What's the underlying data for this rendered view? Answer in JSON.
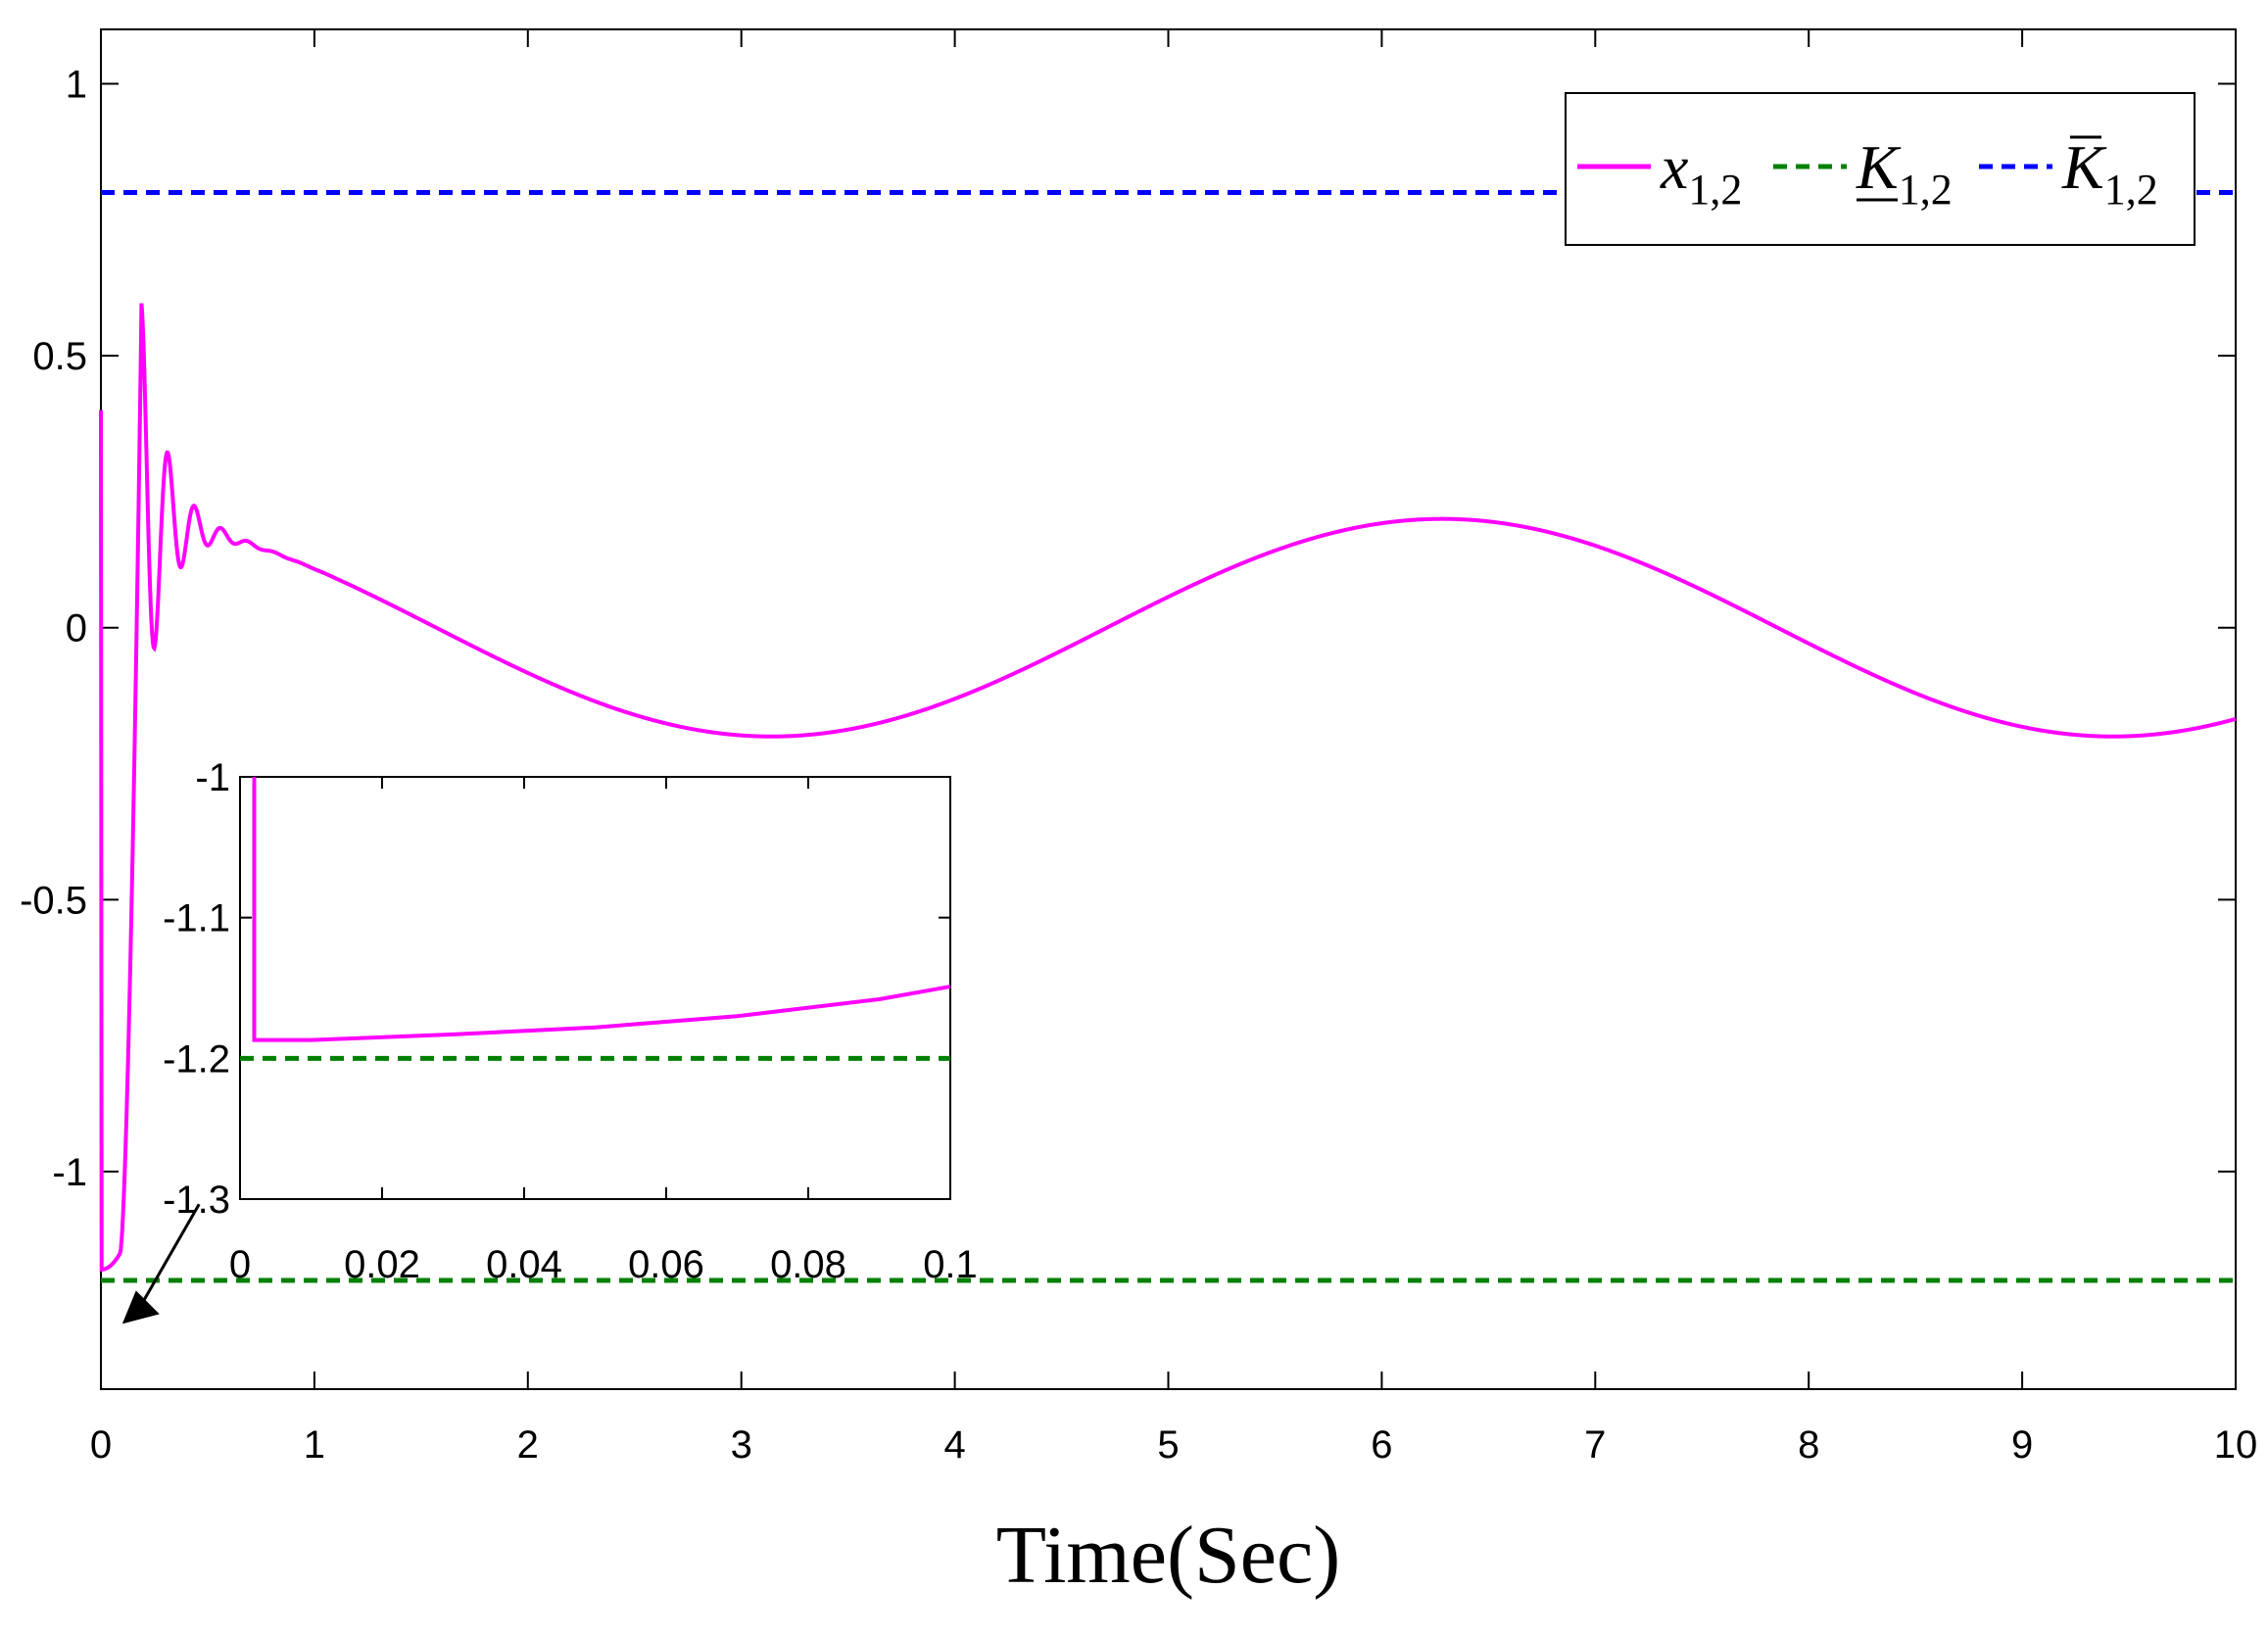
{
  "chart_data": {
    "type": "line",
    "xlabel": "Time(Sec)",
    "ylabel": "",
    "xlim": [
      0,
      10
    ],
    "ylim": [
      -1.4,
      1.1
    ],
    "xticks": [
      0,
      1,
      2,
      3,
      4,
      5,
      6,
      7,
      8,
      9,
      10
    ],
    "xtick_labels": [
      "0",
      "1",
      "2",
      "3",
      "4",
      "5",
      "6",
      "7",
      "8",
      "9",
      "10"
    ],
    "yticks": [
      -1,
      -0.5,
      0,
      0.5,
      1
    ],
    "ytick_labels": [
      "-1",
      "-0.5",
      "0",
      "0.5",
      "1"
    ],
    "grid": false,
    "legend_position": "top-right",
    "series": [
      {
        "name": "x_{1,2}",
        "color": "#ff00ff",
        "style": "solid",
        "description_values": "x(t) starts at 0.4, drops to -1.18, rises with damped oscillation (peak 0.58 near t=0.2), then follows 0.2*sin(t + pi/2)"
      },
      {
        "name": "K_{1,2} (underline)",
        "color": "#008000",
        "style": "dashed",
        "values": [
          [
            0,
            -1.2
          ],
          [
            10,
            -1.2
          ]
        ]
      },
      {
        "name": "K_{1,2} (bar)",
        "color": "#0000ff",
        "style": "dashed",
        "values": [
          [
            0,
            0.8
          ],
          [
            10,
            0.8
          ]
        ]
      }
    ],
    "inset": {
      "xlim": [
        0,
        0.1
      ],
      "ylim": [
        -1.3,
        -1.0
      ],
      "xticks": [
        0,
        0.02,
        0.04,
        0.06,
        0.08,
        0.1
      ],
      "xtick_labels": [
        "0",
        "0.02",
        "0.04",
        "0.06",
        "0.08",
        "0.1"
      ],
      "yticks": [
        -1.3,
        -1.2,
        -1.1,
        -1.0
      ],
      "ytick_labels": [
        "-1.3",
        "-1.2",
        "-1.1",
        "-1"
      ],
      "series": [
        {
          "name": "x_{1,2}",
          "values": [
            [
              0.002,
              -1.0
            ],
            [
              0.002,
              -1.187
            ],
            [
              0.01,
              -1.187
            ],
            [
              0.03,
              -1.183
            ],
            [
              0.05,
              -1.178
            ],
            [
              0.07,
              -1.17
            ],
            [
              0.09,
              -1.158
            ],
            [
              0.1,
              -1.149
            ]
          ]
        },
        {
          "name": "K_{1,2} (underline)",
          "values": [
            [
              0,
              -1.2
            ],
            [
              0.1,
              -1.2
            ]
          ]
        }
      ]
    }
  },
  "legend": {
    "entries": [
      {
        "base": "x",
        "sub": "1,2",
        "mark": "none"
      },
      {
        "base": "K",
        "sub": "1,2",
        "mark": "underline"
      },
      {
        "base": "K",
        "sub": "1,2",
        "mark": "bar"
      }
    ]
  }
}
